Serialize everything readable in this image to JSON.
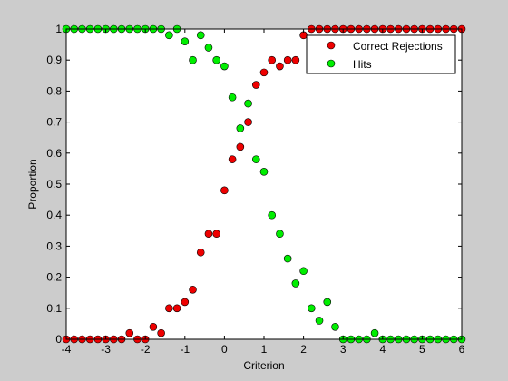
{
  "chart_data": {
    "type": "scatter",
    "xlabel": "Criterion",
    "ylabel": "Proportion",
    "xlim": [
      -4,
      6
    ],
    "ylim": [
      0,
      1
    ],
    "xticks": [
      "-4",
      "-3",
      "-2",
      "-1",
      "0",
      "1",
      "2",
      "3",
      "4",
      "5",
      "6"
    ],
    "yticks": [
      "0",
      "0.1",
      "0.2",
      "0.3",
      "0.4",
      "0.5",
      "0.6",
      "0.7",
      "0.8",
      "0.9",
      "1"
    ],
    "grid": false,
    "legend_position": "top-right",
    "series": [
      {
        "name": "Correct Rejections",
        "color": "#ee0000",
        "x": [
          -4,
          -3.8,
          -3.6,
          -3.4,
          -3.2,
          -3,
          -2.8,
          -2.6,
          -2.4,
          -2.2,
          -2,
          -1.8,
          -1.6,
          -1.4,
          -1.2,
          -1,
          -0.8,
          -0.6,
          -0.4,
          -0.2,
          0,
          0.2,
          0.4,
          0.6,
          0.8,
          1,
          1.2,
          1.4,
          1.6,
          1.8,
          2,
          2.2,
          2.4,
          2.6,
          2.8,
          3,
          3.2,
          3.4,
          3.6,
          3.8,
          4,
          4.2,
          4.4,
          4.6,
          4.8,
          5,
          5.2,
          5.4,
          5.6,
          5.8,
          6
        ],
        "y": [
          0,
          0,
          0,
          0,
          0,
          0,
          0,
          0,
          0.02,
          0,
          0,
          0.04,
          0.02,
          0.1,
          0.1,
          0.12,
          0.16,
          0.28,
          0.34,
          0.34,
          0.48,
          0.58,
          0.62,
          0.7,
          0.82,
          0.86,
          0.9,
          0.88,
          0.9,
          0.9,
          0.98,
          1,
          1,
          1,
          1,
          1,
          1,
          1,
          1,
          1,
          1,
          1,
          1,
          1,
          1,
          1,
          1,
          1,
          1,
          1,
          1
        ]
      },
      {
        "name": "Hits",
        "color": "#00ee00",
        "x": [
          -4,
          -3.8,
          -3.6,
          -3.4,
          -3.2,
          -3,
          -2.8,
          -2.6,
          -2.4,
          -2.2,
          -2,
          -1.8,
          -1.6,
          -1.4,
          -1.2,
          -1,
          -0.8,
          -0.6,
          -0.4,
          -0.2,
          0,
          0.2,
          0.4,
          0.6,
          0.8,
          1,
          1.2,
          1.4,
          1.6,
          1.8,
          2,
          2.2,
          2.4,
          2.6,
          2.8,
          3,
          3.2,
          3.4,
          3.6,
          3.8,
          4,
          4.2,
          4.4,
          4.6,
          4.8,
          5,
          5.2,
          5.4,
          5.6,
          5.8,
          6
        ],
        "y": [
          1,
          1,
          1,
          1,
          1,
          1,
          1,
          1,
          1,
          1,
          1,
          1,
          1,
          0.98,
          1,
          0.96,
          0.9,
          0.98,
          0.94,
          0.9,
          0.88,
          0.78,
          0.68,
          0.76,
          0.58,
          0.54,
          0.4,
          0.34,
          0.26,
          0.18,
          0.22,
          0.1,
          0.06,
          0.12,
          0.04,
          0,
          0,
          0,
          0,
          0.02,
          0,
          0,
          0,
          0,
          0,
          0,
          0,
          0,
          0,
          0,
          0
        ]
      }
    ]
  }
}
